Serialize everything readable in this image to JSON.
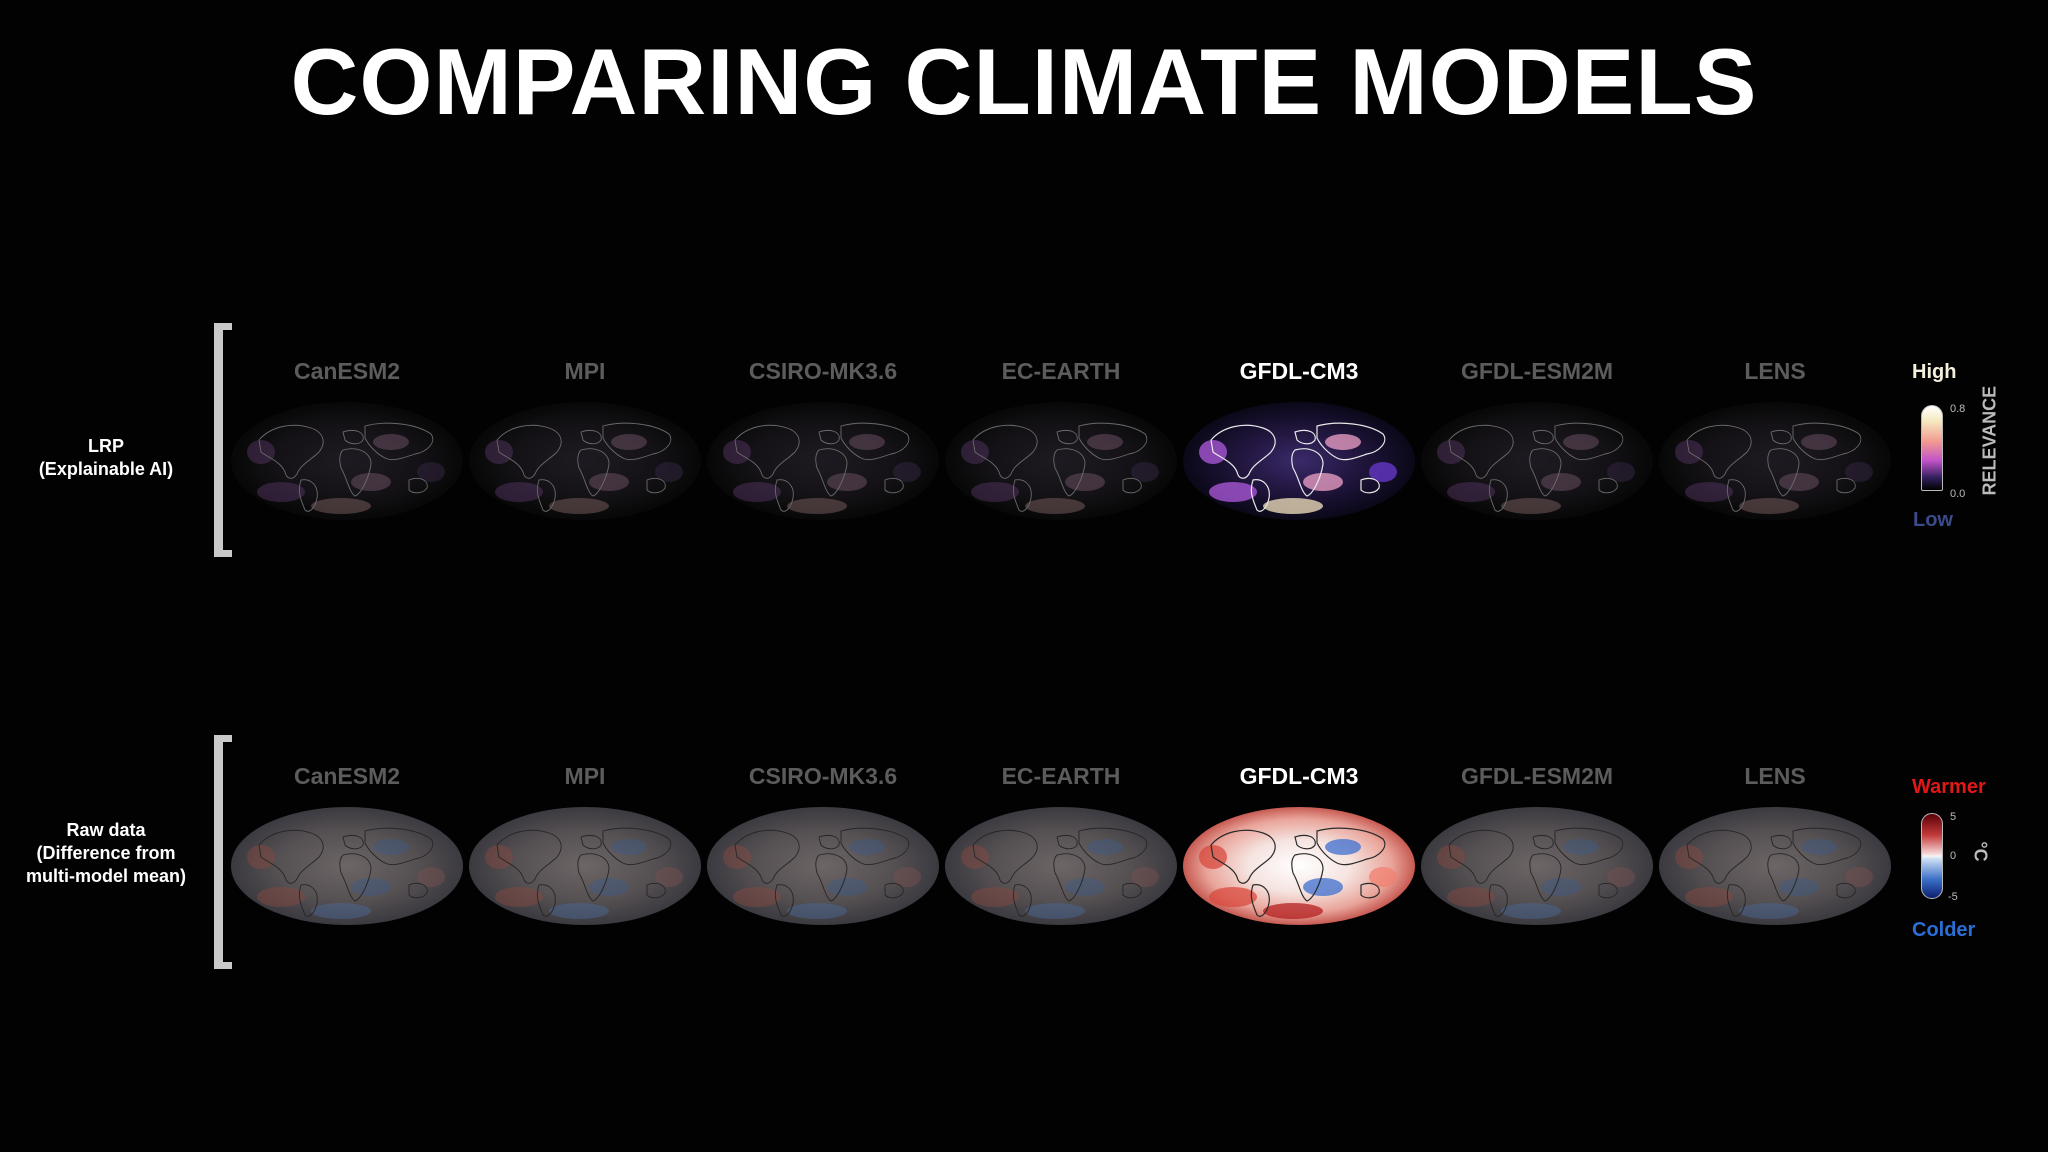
{
  "title": "COMPARING CLIMATE MODELS",
  "models": [
    "CanESM2",
    "MPI",
    "CSIRO-MK3.6",
    "EC-EARTH",
    "GFDL-CM3",
    "GFDL-ESM2M",
    "LENS"
  ],
  "highlighted_model": "GFDL-CM3",
  "rows": {
    "lrp": {
      "label_line1": "LRP",
      "label_line2": "(Explainable AI)",
      "legend": {
        "top": "High",
        "bottom": "Low",
        "max_tick": "0.8",
        "min_tick": "0.0",
        "units": "RELEVANCE"
      }
    },
    "raw": {
      "label_line1": "Raw data",
      "label_line2": "(Difference from",
      "label_line3": "multi-model mean)",
      "legend": {
        "top": "Warmer",
        "bottom": "Colder",
        "max_tick": "5",
        "mid_tick": "0",
        "min_tick": "-5",
        "units": "°C"
      }
    }
  },
  "colors": {
    "background": "#020202",
    "inactive_label": "#5c5c5c",
    "active_label": "#ffffff",
    "warmer": "#e01818",
    "colder": "#2a6fd6",
    "low": "#3b4a8a"
  }
}
